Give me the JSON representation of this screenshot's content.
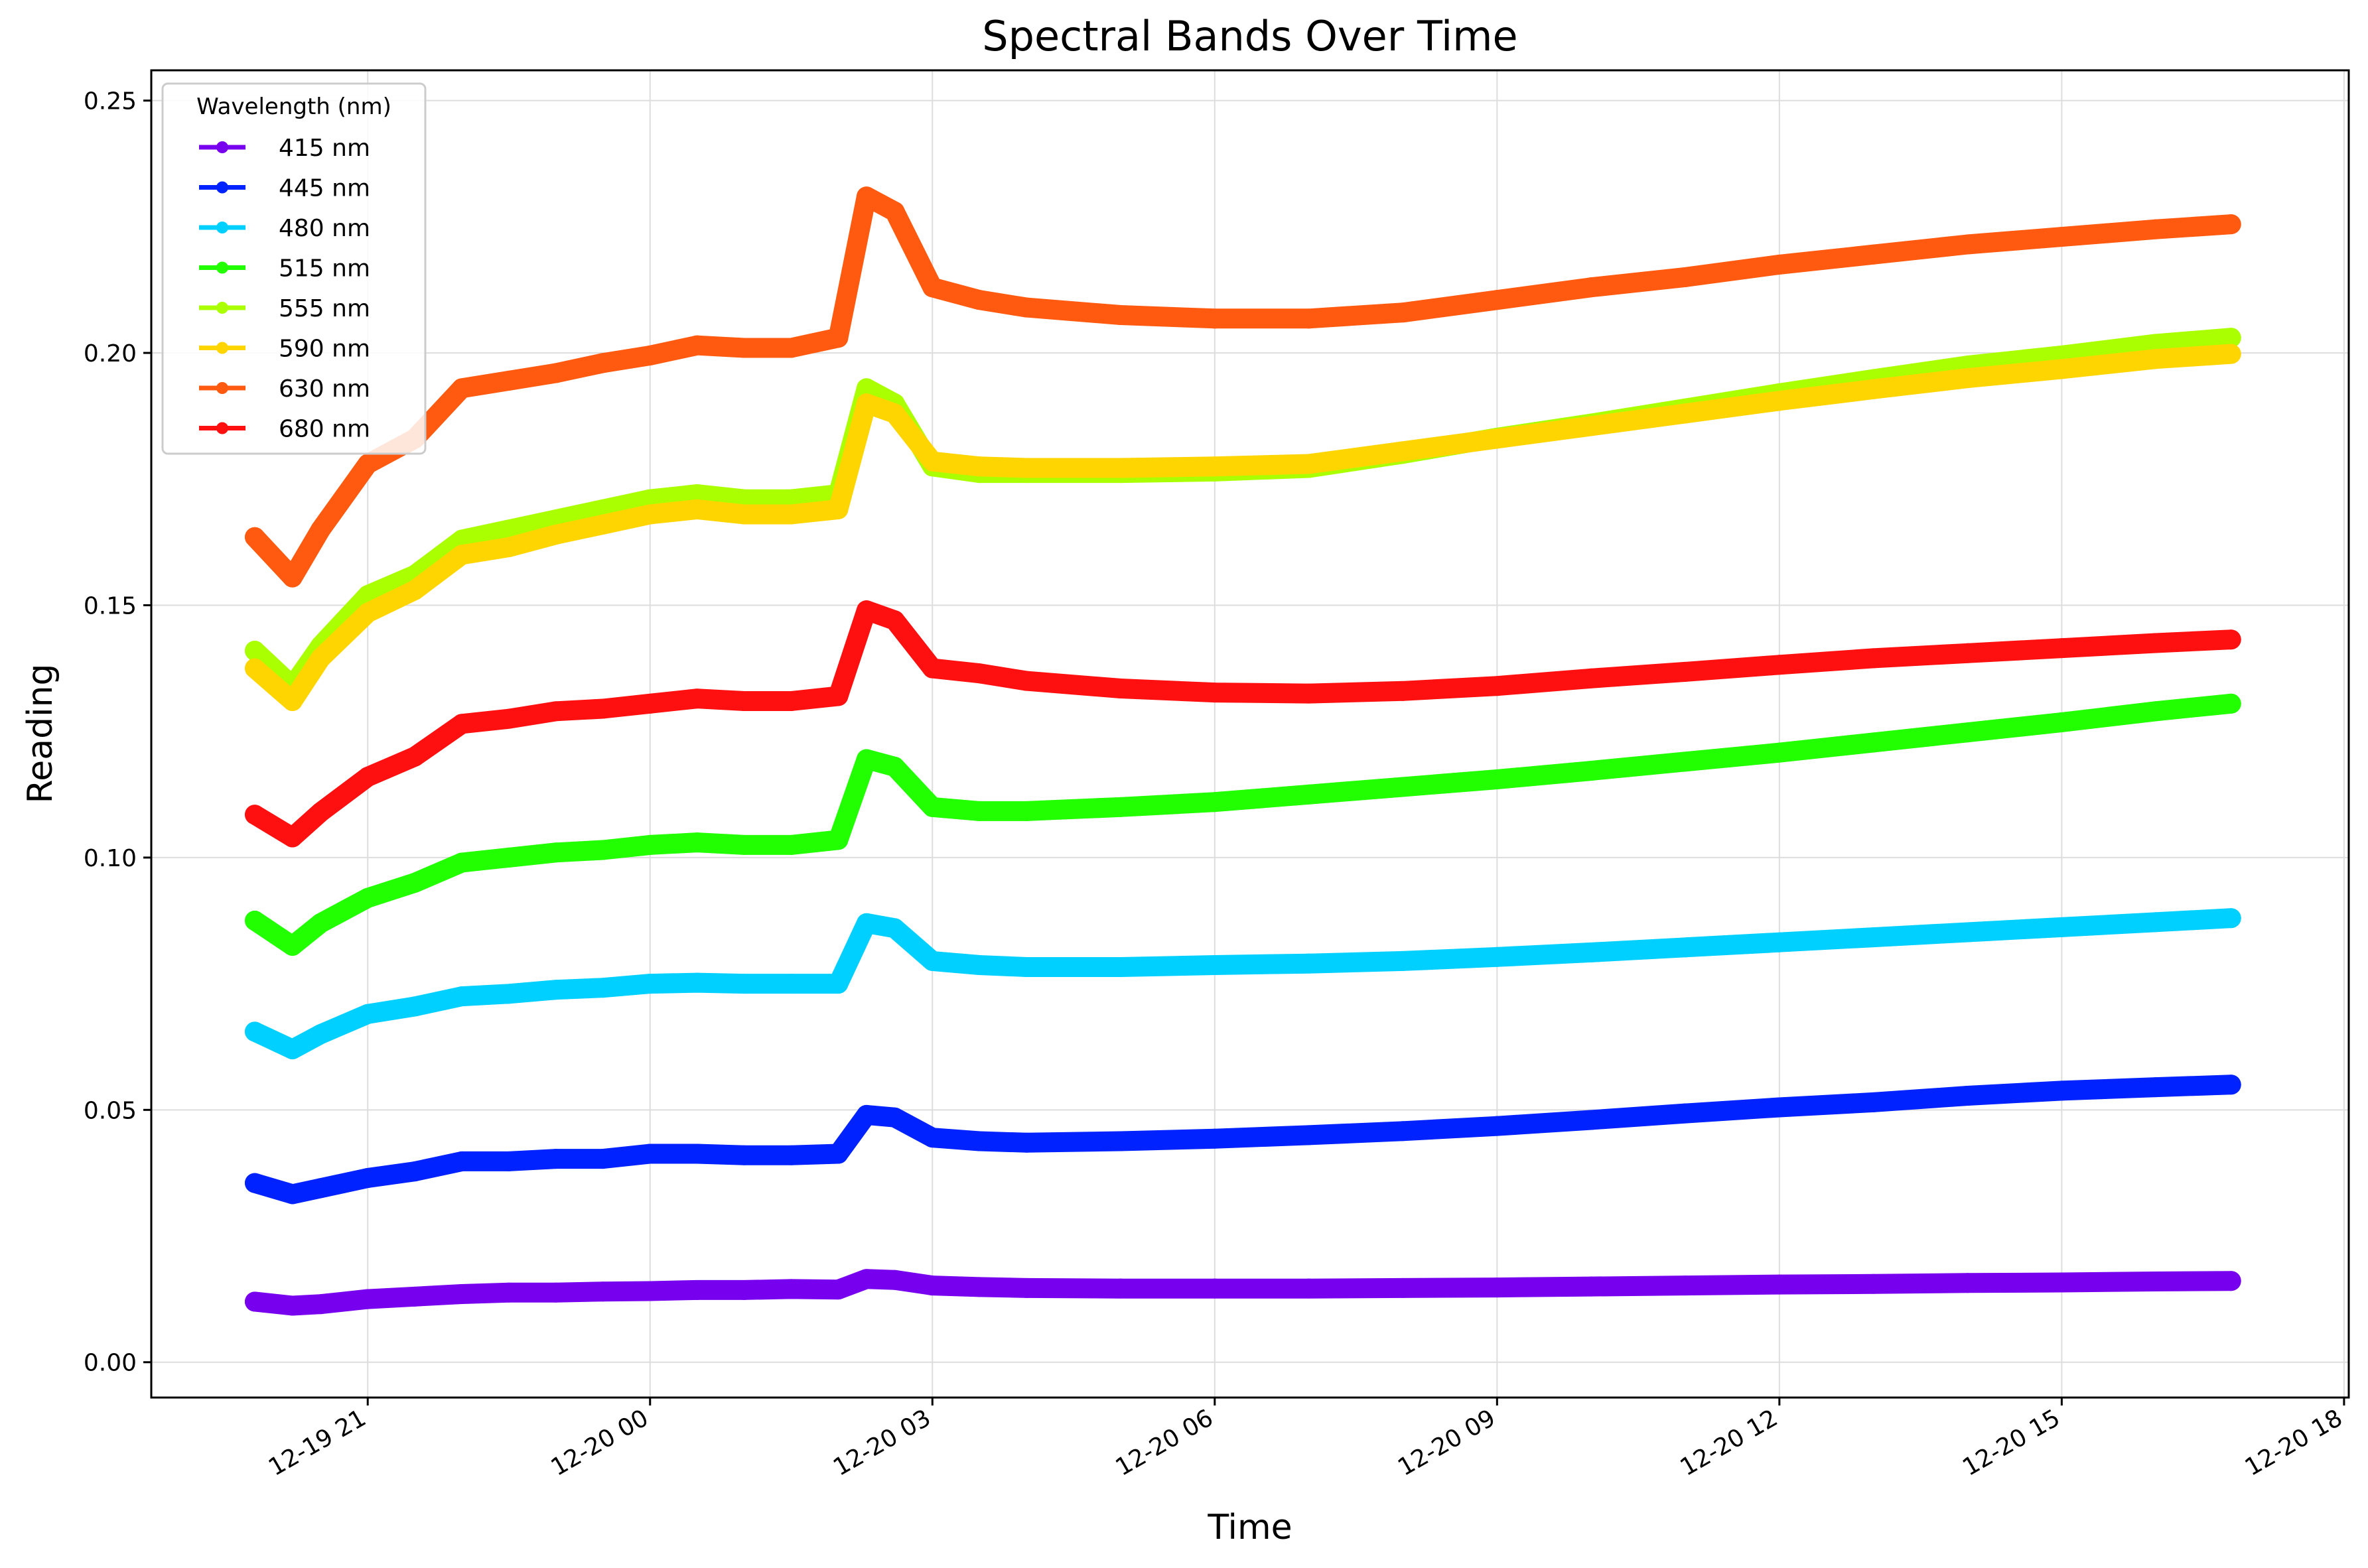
{
  "chart_data": {
    "type": "line",
    "title": "Spectral Bands Over Time",
    "xlabel": "Time",
    "ylabel": "Reading",
    "x_ticks": [
      "12-19 21",
      "12-20 00",
      "12-20 03",
      "12-20 06",
      "12-20 09",
      "12-20 12",
      "12-20 15",
      "12-20 18"
    ],
    "x_tick_hours": [
      21,
      24,
      27,
      30,
      33,
      36,
      39,
      42
    ],
    "y_ticks": [
      "0.00",
      "0.05",
      "0.10",
      "0.15",
      "0.20",
      "0.25"
    ],
    "y_tick_values": [
      0.0,
      0.05,
      0.1,
      0.15,
      0.2,
      0.25
    ],
    "xlim_hours": [
      18.7,
      42.05
    ],
    "ylim": [
      -0.007,
      0.256
    ],
    "grid": true,
    "legend": {
      "title": "Wavelength (nm)",
      "placement": "top-left"
    },
    "x_hours": [
      19.8,
      20.2,
      20.5,
      21.0,
      21.5,
      22.0,
      22.5,
      23.0,
      23.5,
      24.0,
      24.5,
      25.0,
      25.5,
      26.0,
      26.3,
      26.6,
      27.0,
      27.5,
      28.0,
      29.0,
      30.0,
      31.0,
      32.0,
      33.0,
      34.0,
      35.0,
      36.0,
      37.0,
      38.0,
      39.0,
      40.0,
      40.8
    ],
    "series": [
      {
        "name": "415 nm",
        "color": "#7700ee",
        "values": [
          0.012,
          0.0112,
          0.0115,
          0.0125,
          0.013,
          0.0135,
          0.0138,
          0.0138,
          0.014,
          0.0141,
          0.0143,
          0.0143,
          0.0145,
          0.0144,
          0.0165,
          0.0163,
          0.0152,
          0.0149,
          0.0147,
          0.0146,
          0.0146,
          0.0146,
          0.0147,
          0.0148,
          0.015,
          0.0152,
          0.0154,
          0.0155,
          0.0157,
          0.0158,
          0.016,
          0.0161
        ]
      },
      {
        "name": "445 nm",
        "color": "#0022ff",
        "values": [
          0.0355,
          0.0333,
          0.0345,
          0.0365,
          0.0378,
          0.0398,
          0.0398,
          0.0403,
          0.0403,
          0.0413,
          0.0413,
          0.041,
          0.041,
          0.0413,
          0.049,
          0.0485,
          0.0445,
          0.0438,
          0.0435,
          0.0438,
          0.0443,
          0.045,
          0.0458,
          0.0468,
          0.048,
          0.0493,
          0.0505,
          0.0515,
          0.0528,
          0.0538,
          0.0545,
          0.055
        ]
      },
      {
        "name": "480 nm",
        "color": "#00d0ff",
        "values": [
          0.0655,
          0.062,
          0.065,
          0.069,
          0.0705,
          0.0725,
          0.073,
          0.0738,
          0.0742,
          0.075,
          0.0752,
          0.075,
          0.075,
          0.075,
          0.087,
          0.086,
          0.0795,
          0.0787,
          0.0783,
          0.0783,
          0.0787,
          0.079,
          0.0795,
          0.0803,
          0.0812,
          0.0822,
          0.0832,
          0.0842,
          0.0852,
          0.0862,
          0.0872,
          0.088
        ]
      },
      {
        "name": "515 nm",
        "color": "#22ff00",
        "values": [
          0.0875,
          0.0825,
          0.087,
          0.092,
          0.095,
          0.099,
          0.1,
          0.101,
          0.1015,
          0.1025,
          0.103,
          0.1025,
          0.1025,
          0.1035,
          0.1195,
          0.118,
          0.11,
          0.1092,
          0.1092,
          0.11,
          0.111,
          0.1125,
          0.114,
          0.1155,
          0.1172,
          0.119,
          0.1208,
          0.1228,
          0.1248,
          0.1268,
          0.129,
          0.1305
        ]
      },
      {
        "name": "555 nm",
        "color": "#aaff00",
        "values": [
          0.141,
          0.134,
          0.142,
          0.152,
          0.156,
          0.163,
          0.165,
          0.167,
          0.169,
          0.171,
          0.172,
          0.171,
          0.171,
          0.172,
          0.193,
          0.19,
          0.1775,
          0.1762,
          0.1762,
          0.1762,
          0.1765,
          0.1772,
          0.18,
          0.1832,
          0.186,
          0.189,
          0.192,
          0.1948,
          0.1975,
          0.1995,
          0.2018,
          0.203
        ]
      },
      {
        "name": "590 nm",
        "color": "#ffd500",
        "values": [
          0.1375,
          0.131,
          0.1395,
          0.1485,
          0.153,
          0.16,
          0.1615,
          0.164,
          0.166,
          0.168,
          0.169,
          0.168,
          0.168,
          0.169,
          0.19,
          0.188,
          0.1785,
          0.1775,
          0.1772,
          0.1772,
          0.1775,
          0.178,
          0.1805,
          0.183,
          0.1855,
          0.188,
          0.1905,
          0.1928,
          0.195,
          0.1968,
          0.1988,
          0.1998
        ]
      },
      {
        "name": "630 nm",
        "color": "#ff5a10",
        "values": [
          0.1635,
          0.1555,
          0.165,
          0.178,
          0.183,
          0.193,
          0.1945,
          0.196,
          0.198,
          0.1995,
          0.2015,
          0.201,
          0.201,
          0.203,
          0.231,
          0.228,
          0.213,
          0.2105,
          0.209,
          0.2075,
          0.2068,
          0.2068,
          0.208,
          0.2105,
          0.213,
          0.215,
          0.2175,
          0.2195,
          0.2215,
          0.223,
          0.2245,
          0.2255
        ]
      },
      {
        "name": "680 nm",
        "color": "#ff1010",
        "values": [
          0.1085,
          0.104,
          0.109,
          0.116,
          0.12,
          0.1265,
          0.1275,
          0.129,
          0.1295,
          0.1305,
          0.1315,
          0.131,
          0.131,
          0.132,
          0.149,
          0.147,
          0.1375,
          0.1365,
          0.135,
          0.1335,
          0.1327,
          0.1325,
          0.133,
          0.134,
          0.1355,
          0.1368,
          0.1382,
          0.1395,
          0.1405,
          0.1415,
          0.1425,
          0.1432
        ]
      }
    ]
  }
}
